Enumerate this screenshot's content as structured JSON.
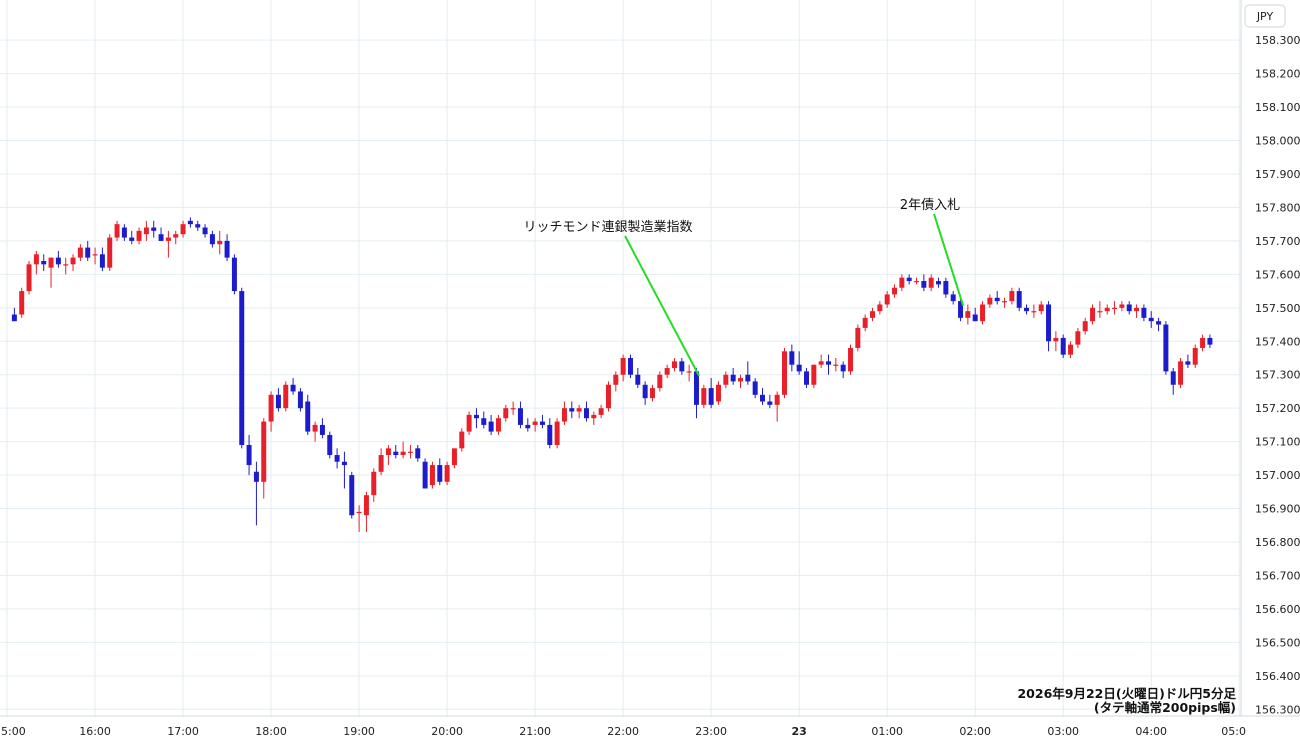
{
  "chart_data": {
    "type": "candlestick",
    "currency": "JPY",
    "caption_line1": "2026年9月22日(火曜日)ドル円5分足",
    "caption_line2": "(タテ軸通常200pips幅)",
    "ylim": [
      156.28,
      158.42
    ],
    "xlim": [
      14.92,
      5.02
    ],
    "y_ticks": [
      {
        "value": 156.3,
        "label": "156.300"
      },
      {
        "value": 156.4,
        "label": "156.400"
      },
      {
        "value": 156.5,
        "label": "156.500"
      },
      {
        "value": 156.6,
        "label": "156.600"
      },
      {
        "value": 156.7,
        "label": "156.700"
      },
      {
        "value": 156.8,
        "label": "156.800"
      },
      {
        "value": 156.9,
        "label": "156.900"
      },
      {
        "value": 157.0,
        "label": "157.000"
      },
      {
        "value": 157.1,
        "label": "157.100"
      },
      {
        "value": 157.2,
        "label": "157.200"
      },
      {
        "value": 157.3,
        "label": "157.300"
      },
      {
        "value": 157.4,
        "label": "157.400"
      },
      {
        "value": 157.5,
        "label": "157.500"
      },
      {
        "value": 157.6,
        "label": "157.600"
      },
      {
        "value": 157.7,
        "label": "157.700"
      },
      {
        "value": 157.8,
        "label": "157.800"
      },
      {
        "value": 157.9,
        "label": "157.900"
      },
      {
        "value": 158.0,
        "label": "158.000"
      },
      {
        "value": 158.1,
        "label": "158.100"
      },
      {
        "value": 158.2,
        "label": "158.200"
      },
      {
        "value": 158.3,
        "label": "158.300"
      }
    ],
    "x_ticks": [
      {
        "label": "5:00",
        "bold": false
      },
      {
        "label": "16:00",
        "bold": false
      },
      {
        "label": "17:00",
        "bold": false
      },
      {
        "label": "18:00",
        "bold": false
      },
      {
        "label": "19:00",
        "bold": false
      },
      {
        "label": "20:00",
        "bold": false
      },
      {
        "label": "21:00",
        "bold": false
      },
      {
        "label": "22:00",
        "bold": false
      },
      {
        "label": "23:00",
        "bold": false
      },
      {
        "label": "23",
        "bold": true
      },
      {
        "label": "01:00",
        "bold": false
      },
      {
        "label": "02:00",
        "bold": false
      },
      {
        "label": "03:00",
        "bold": false
      },
      {
        "label": "04:00",
        "bold": false
      },
      {
        "label": "05:0",
        "bold": false
      }
    ],
    "annotations": [
      {
        "text": "リッチモンド連銀製造業指数",
        "time": "23:00",
        "price": 157.29
      },
      {
        "text": "2年債入札",
        "time": "02:00",
        "price": 157.5
      }
    ],
    "colors": {
      "up": "#e8202a",
      "down": "#1c1ccc",
      "grid": "#e4eef2",
      "annotation_line": "#22dd22"
    },
    "candles": [
      {
        "o": 157.48,
        "h": 157.5,
        "l": 157.46,
        "c": 157.46
      },
      {
        "o": 157.48,
        "h": 157.56,
        "l": 157.47,
        "c": 157.55
      },
      {
        "o": 157.55,
        "h": 157.64,
        "l": 157.54,
        "c": 157.63
      },
      {
        "o": 157.63,
        "h": 157.67,
        "l": 157.6,
        "c": 157.66
      },
      {
        "o": 157.64,
        "h": 157.66,
        "l": 157.61,
        "c": 157.63
      },
      {
        "o": 157.62,
        "h": 157.65,
        "l": 157.56,
        "c": 157.65
      },
      {
        "o": 157.65,
        "h": 157.67,
        "l": 157.62,
        "c": 157.63
      },
      {
        "o": 157.63,
        "h": 157.65,
        "l": 157.6,
        "c": 157.63
      },
      {
        "o": 157.63,
        "h": 157.66,
        "l": 157.61,
        "c": 157.65
      },
      {
        "o": 157.65,
        "h": 157.69,
        "l": 157.64,
        "c": 157.68
      },
      {
        "o": 157.68,
        "h": 157.7,
        "l": 157.64,
        "c": 157.65
      },
      {
        "o": 157.66,
        "h": 157.68,
        "l": 157.63,
        "c": 157.66
      },
      {
        "o": 157.66,
        "h": 157.68,
        "l": 157.61,
        "c": 157.62
      },
      {
        "o": 157.62,
        "h": 157.72,
        "l": 157.61,
        "c": 157.71
      },
      {
        "o": 157.71,
        "h": 157.76,
        "l": 157.7,
        "c": 157.75
      },
      {
        "o": 157.74,
        "h": 157.75,
        "l": 157.7,
        "c": 157.71
      },
      {
        "o": 157.71,
        "h": 157.73,
        "l": 157.69,
        "c": 157.7
      },
      {
        "o": 157.7,
        "h": 157.74,
        "l": 157.69,
        "c": 157.73
      },
      {
        "o": 157.72,
        "h": 157.76,
        "l": 157.7,
        "c": 157.74
      },
      {
        "o": 157.74,
        "h": 157.76,
        "l": 157.71,
        "c": 157.73
      },
      {
        "o": 157.72,
        "h": 157.74,
        "l": 157.7,
        "c": 157.7
      },
      {
        "o": 157.7,
        "h": 157.73,
        "l": 157.65,
        "c": 157.71
      },
      {
        "o": 157.71,
        "h": 157.73,
        "l": 157.69,
        "c": 157.72
      },
      {
        "o": 157.72,
        "h": 157.76,
        "l": 157.71,
        "c": 157.75
      },
      {
        "o": 157.76,
        "h": 157.77,
        "l": 157.74,
        "c": 157.75
      },
      {
        "o": 157.75,
        "h": 157.76,
        "l": 157.73,
        "c": 157.74
      },
      {
        "o": 157.74,
        "h": 157.75,
        "l": 157.71,
        "c": 157.72
      },
      {
        "o": 157.72,
        "h": 157.73,
        "l": 157.68,
        "c": 157.69
      },
      {
        "o": 157.69,
        "h": 157.73,
        "l": 157.66,
        "c": 157.7
      },
      {
        "o": 157.7,
        "h": 157.72,
        "l": 157.64,
        "c": 157.65
      },
      {
        "o": 157.65,
        "h": 157.66,
        "l": 157.54,
        "c": 157.55
      },
      {
        "o": 157.55,
        "h": 157.56,
        "l": 157.08,
        "c": 157.09
      },
      {
        "o": 157.09,
        "h": 157.12,
        "l": 157.0,
        "c": 157.03
      },
      {
        "o": 157.01,
        "h": 157.04,
        "l": 156.85,
        "c": 156.98
      },
      {
        "o": 156.98,
        "h": 157.17,
        "l": 156.93,
        "c": 157.16
      },
      {
        "o": 157.16,
        "h": 157.25,
        "l": 157.13,
        "c": 157.24
      },
      {
        "o": 157.24,
        "h": 157.26,
        "l": 157.19,
        "c": 157.2
      },
      {
        "o": 157.2,
        "h": 157.28,
        "l": 157.19,
        "c": 157.27
      },
      {
        "o": 157.27,
        "h": 157.29,
        "l": 157.24,
        "c": 157.25
      },
      {
        "o": 157.25,
        "h": 157.26,
        "l": 157.19,
        "c": 157.2
      },
      {
        "o": 157.22,
        "h": 157.24,
        "l": 157.12,
        "c": 157.13
      },
      {
        "o": 157.13,
        "h": 157.16,
        "l": 157.1,
        "c": 157.15
      },
      {
        "o": 157.15,
        "h": 157.17,
        "l": 157.11,
        "c": 157.12
      },
      {
        "o": 157.12,
        "h": 157.13,
        "l": 157.05,
        "c": 157.06
      },
      {
        "o": 157.06,
        "h": 157.08,
        "l": 157.02,
        "c": 157.04
      },
      {
        "o": 157.04,
        "h": 157.07,
        "l": 156.96,
        "c": 157.03
      },
      {
        "o": 157.0,
        "h": 157.01,
        "l": 156.87,
        "c": 156.88
      },
      {
        "o": 156.89,
        "h": 156.91,
        "l": 156.83,
        "c": 156.89
      },
      {
        "o": 156.88,
        "h": 156.95,
        "l": 156.83,
        "c": 156.94
      },
      {
        "o": 156.94,
        "h": 157.02,
        "l": 156.92,
        "c": 157.01
      },
      {
        "o": 157.01,
        "h": 157.08,
        "l": 157.0,
        "c": 157.06
      },
      {
        "o": 157.06,
        "h": 157.09,
        "l": 157.03,
        "c": 157.08
      },
      {
        "o": 157.07,
        "h": 157.09,
        "l": 157.05,
        "c": 157.06
      },
      {
        "o": 157.06,
        "h": 157.1,
        "l": 157.05,
        "c": 157.07
      },
      {
        "o": 157.07,
        "h": 157.09,
        "l": 157.05,
        "c": 157.07
      },
      {
        "o": 157.08,
        "h": 157.09,
        "l": 157.04,
        "c": 157.05
      },
      {
        "o": 157.04,
        "h": 157.05,
        "l": 156.96,
        "c": 156.96
      },
      {
        "o": 156.97,
        "h": 157.04,
        "l": 156.96,
        "c": 157.03
      },
      {
        "o": 157.03,
        "h": 157.05,
        "l": 156.97,
        "c": 156.98
      },
      {
        "o": 156.98,
        "h": 157.04,
        "l": 156.97,
        "c": 157.03
      },
      {
        "o": 157.03,
        "h": 157.08,
        "l": 157.02,
        "c": 157.08
      },
      {
        "o": 157.08,
        "h": 157.14,
        "l": 157.07,
        "c": 157.13
      },
      {
        "o": 157.13,
        "h": 157.19,
        "l": 157.12,
        "c": 157.18
      },
      {
        "o": 157.18,
        "h": 157.2,
        "l": 157.14,
        "c": 157.17
      },
      {
        "o": 157.17,
        "h": 157.19,
        "l": 157.14,
        "c": 157.15
      },
      {
        "o": 157.16,
        "h": 157.18,
        "l": 157.12,
        "c": 157.13
      },
      {
        "o": 157.13,
        "h": 157.18,
        "l": 157.12,
        "c": 157.17
      },
      {
        "o": 157.17,
        "h": 157.21,
        "l": 157.16,
        "c": 157.2
      },
      {
        "o": 157.2,
        "h": 157.22,
        "l": 157.18,
        "c": 157.2
      },
      {
        "o": 157.2,
        "h": 157.22,
        "l": 157.14,
        "c": 157.15
      },
      {
        "o": 157.15,
        "h": 157.17,
        "l": 157.13,
        "c": 157.14
      },
      {
        "o": 157.15,
        "h": 157.17,
        "l": 157.13,
        "c": 157.16
      },
      {
        "o": 157.16,
        "h": 157.18,
        "l": 157.14,
        "c": 157.15
      },
      {
        "o": 157.15,
        "h": 157.17,
        "l": 157.08,
        "c": 157.09
      },
      {
        "o": 157.09,
        "h": 157.17,
        "l": 157.08,
        "c": 157.16
      },
      {
        "o": 157.16,
        "h": 157.22,
        "l": 157.15,
        "c": 157.2
      },
      {
        "o": 157.2,
        "h": 157.22,
        "l": 157.17,
        "c": 157.19
      },
      {
        "o": 157.19,
        "h": 157.21,
        "l": 157.17,
        "c": 157.2
      },
      {
        "o": 157.2,
        "h": 157.22,
        "l": 157.16,
        "c": 157.17
      },
      {
        "o": 157.17,
        "h": 157.19,
        "l": 157.15,
        "c": 157.18
      },
      {
        "o": 157.18,
        "h": 157.21,
        "l": 157.17,
        "c": 157.2
      },
      {
        "o": 157.2,
        "h": 157.28,
        "l": 157.19,
        "c": 157.27
      },
      {
        "o": 157.27,
        "h": 157.31,
        "l": 157.25,
        "c": 157.3
      },
      {
        "o": 157.3,
        "h": 157.36,
        "l": 157.28,
        "c": 157.35
      },
      {
        "o": 157.35,
        "h": 157.36,
        "l": 157.29,
        "c": 157.3
      },
      {
        "o": 157.3,
        "h": 157.32,
        "l": 157.26,
        "c": 157.27
      },
      {
        "o": 157.27,
        "h": 157.28,
        "l": 157.21,
        "c": 157.23
      },
      {
        "o": 157.23,
        "h": 157.27,
        "l": 157.22,
        "c": 157.26
      },
      {
        "o": 157.26,
        "h": 157.31,
        "l": 157.25,
        "c": 157.3
      },
      {
        "o": 157.3,
        "h": 157.33,
        "l": 157.29,
        "c": 157.32
      },
      {
        "o": 157.32,
        "h": 157.35,
        "l": 157.31,
        "c": 157.34
      },
      {
        "o": 157.34,
        "h": 157.35,
        "l": 157.3,
        "c": 157.31
      },
      {
        "o": 157.31,
        "h": 157.33,
        "l": 157.28,
        "c": 157.31
      },
      {
        "o": 157.31,
        "h": 157.32,
        "l": 157.17,
        "c": 157.21
      },
      {
        "o": 157.21,
        "h": 157.27,
        "l": 157.2,
        "c": 157.26
      },
      {
        "o": 157.26,
        "h": 157.29,
        "l": 157.2,
        "c": 157.21
      },
      {
        "o": 157.22,
        "h": 157.28,
        "l": 157.21,
        "c": 157.27
      },
      {
        "o": 157.27,
        "h": 157.31,
        "l": 157.26,
        "c": 157.3
      },
      {
        "o": 157.3,
        "h": 157.32,
        "l": 157.27,
        "c": 157.28
      },
      {
        "o": 157.28,
        "h": 157.3,
        "l": 157.26,
        "c": 157.29
      },
      {
        "o": 157.3,
        "h": 157.34,
        "l": 157.27,
        "c": 157.28
      },
      {
        "o": 157.28,
        "h": 157.29,
        "l": 157.23,
        "c": 157.24
      },
      {
        "o": 157.24,
        "h": 157.26,
        "l": 157.21,
        "c": 157.22
      },
      {
        "o": 157.22,
        "h": 157.24,
        "l": 157.2,
        "c": 157.21
      },
      {
        "o": 157.21,
        "h": 157.25,
        "l": 157.16,
        "c": 157.24
      },
      {
        "o": 157.24,
        "h": 157.38,
        "l": 157.23,
        "c": 157.37
      },
      {
        "o": 157.37,
        "h": 157.39,
        "l": 157.31,
        "c": 157.33
      },
      {
        "o": 157.33,
        "h": 157.37,
        "l": 157.3,
        "c": 157.31
      },
      {
        "o": 157.31,
        "h": 157.32,
        "l": 157.26,
        "c": 157.27
      },
      {
        "o": 157.27,
        "h": 157.33,
        "l": 157.26,
        "c": 157.33
      },
      {
        "o": 157.33,
        "h": 157.36,
        "l": 157.32,
        "c": 157.34
      },
      {
        "o": 157.34,
        "h": 157.36,
        "l": 157.3,
        "c": 157.33
      },
      {
        "o": 157.33,
        "h": 157.35,
        "l": 157.31,
        "c": 157.33
      },
      {
        "o": 157.33,
        "h": 157.34,
        "l": 157.29,
        "c": 157.31
      },
      {
        "o": 157.31,
        "h": 157.39,
        "l": 157.3,
        "c": 157.38
      },
      {
        "o": 157.38,
        "h": 157.45,
        "l": 157.37,
        "c": 157.44
      },
      {
        "o": 157.44,
        "h": 157.48,
        "l": 157.43,
        "c": 157.47
      },
      {
        "o": 157.47,
        "h": 157.5,
        "l": 157.46,
        "c": 157.49
      },
      {
        "o": 157.49,
        "h": 157.52,
        "l": 157.48,
        "c": 157.51
      },
      {
        "o": 157.51,
        "h": 157.55,
        "l": 157.5,
        "c": 157.54
      },
      {
        "o": 157.54,
        "h": 157.57,
        "l": 157.53,
        "c": 157.56
      },
      {
        "o": 157.56,
        "h": 157.6,
        "l": 157.55,
        "c": 157.59
      },
      {
        "o": 157.59,
        "h": 157.6,
        "l": 157.57,
        "c": 157.58
      },
      {
        "o": 157.58,
        "h": 157.59,
        "l": 157.57,
        "c": 157.58
      },
      {
        "o": 157.58,
        "h": 157.6,
        "l": 157.55,
        "c": 157.56
      },
      {
        "o": 157.56,
        "h": 157.6,
        "l": 157.55,
        "c": 157.59
      },
      {
        "o": 157.58,
        "h": 157.59,
        "l": 157.56,
        "c": 157.57
      },
      {
        "o": 157.58,
        "h": 157.59,
        "l": 157.53,
        "c": 157.54
      },
      {
        "o": 157.54,
        "h": 157.55,
        "l": 157.51,
        "c": 157.52
      },
      {
        "o": 157.52,
        "h": 157.53,
        "l": 157.46,
        "c": 157.47
      },
      {
        "o": 157.47,
        "h": 157.51,
        "l": 157.45,
        "c": 157.49
      },
      {
        "o": 157.48,
        "h": 157.5,
        "l": 157.46,
        "c": 157.46
      },
      {
        "o": 157.46,
        "h": 157.52,
        "l": 157.45,
        "c": 157.51
      },
      {
        "o": 157.51,
        "h": 157.54,
        "l": 157.5,
        "c": 157.53
      },
      {
        "o": 157.53,
        "h": 157.55,
        "l": 157.51,
        "c": 157.52
      },
      {
        "o": 157.52,
        "h": 157.53,
        "l": 157.5,
        "c": 157.52
      },
      {
        "o": 157.52,
        "h": 157.56,
        "l": 157.51,
        "c": 157.55
      },
      {
        "o": 157.55,
        "h": 157.56,
        "l": 157.49,
        "c": 157.5
      },
      {
        "o": 157.5,
        "h": 157.51,
        "l": 157.48,
        "c": 157.49
      },
      {
        "o": 157.49,
        "h": 157.51,
        "l": 157.47,
        "c": 157.49
      },
      {
        "o": 157.49,
        "h": 157.52,
        "l": 157.48,
        "c": 157.51
      },
      {
        "o": 157.51,
        "h": 157.52,
        "l": 157.37,
        "c": 157.4
      },
      {
        "o": 157.4,
        "h": 157.43,
        "l": 157.37,
        "c": 157.41
      },
      {
        "o": 157.41,
        "h": 157.42,
        "l": 157.35,
        "c": 157.36
      },
      {
        "o": 157.36,
        "h": 157.4,
        "l": 157.35,
        "c": 157.39
      },
      {
        "o": 157.39,
        "h": 157.44,
        "l": 157.38,
        "c": 157.43
      },
      {
        "o": 157.43,
        "h": 157.47,
        "l": 157.42,
        "c": 157.46
      },
      {
        "o": 157.46,
        "h": 157.51,
        "l": 157.45,
        "c": 157.5
      },
      {
        "o": 157.49,
        "h": 157.52,
        "l": 157.47,
        "c": 157.49
      },
      {
        "o": 157.49,
        "h": 157.51,
        "l": 157.48,
        "c": 157.5
      },
      {
        "o": 157.5,
        "h": 157.52,
        "l": 157.48,
        "c": 157.5
      },
      {
        "o": 157.5,
        "h": 157.52,
        "l": 157.49,
        "c": 157.51
      },
      {
        "o": 157.51,
        "h": 157.52,
        "l": 157.48,
        "c": 157.49
      },
      {
        "o": 157.49,
        "h": 157.51,
        "l": 157.47,
        "c": 157.5
      },
      {
        "o": 157.5,
        "h": 157.51,
        "l": 157.46,
        "c": 157.47
      },
      {
        "o": 157.47,
        "h": 157.49,
        "l": 157.44,
        "c": 157.46
      },
      {
        "o": 157.46,
        "h": 157.47,
        "l": 157.43,
        "c": 157.45
      },
      {
        "o": 157.45,
        "h": 157.46,
        "l": 157.3,
        "c": 157.31
      },
      {
        "o": 157.31,
        "h": 157.32,
        "l": 157.24,
        "c": 157.27
      },
      {
        "o": 157.27,
        "h": 157.35,
        "l": 157.26,
        "c": 157.34
      },
      {
        "o": 157.34,
        "h": 157.36,
        "l": 157.32,
        "c": 157.33
      },
      {
        "o": 157.33,
        "h": 157.39,
        "l": 157.32,
        "c": 157.38
      },
      {
        "o": 157.38,
        "h": 157.42,
        "l": 157.37,
        "c": 157.41
      },
      {
        "o": 157.41,
        "h": 157.42,
        "l": 157.38,
        "c": 157.39
      }
    ]
  }
}
